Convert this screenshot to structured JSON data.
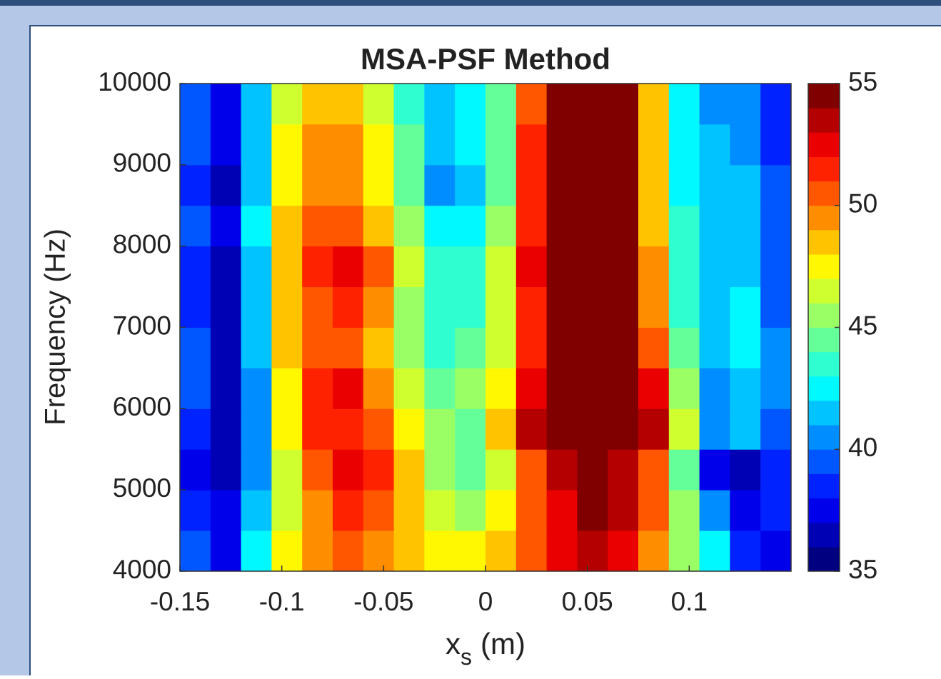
{
  "chart_data": {
    "type": "heatmap",
    "title": "MSA-PSF Method",
    "ylabel": "Frequency (Hz)",
    "xlabel": {
      "text": "x",
      "subscript": "s",
      "suffix": "(m)"
    },
    "colormap": "jet",
    "x": [
      -0.1425,
      -0.1275,
      -0.1125,
      -0.0975,
      -0.0825,
      -0.0675,
      -0.0525,
      -0.0375,
      -0.0225,
      -0.0075,
      0.0075,
      0.0225,
      0.0375,
      0.0525,
      0.0675,
      0.0825,
      0.0975,
      0.1125,
      0.1275,
      0.1425
    ],
    "y": [
      4250,
      4750,
      5250,
      5750,
      6250,
      6750,
      7250,
      7750,
      8250,
      8750,
      9250,
      9750
    ],
    "z": [
      [
        39,
        37,
        42,
        47,
        49,
        50,
        49,
        48,
        47,
        47,
        48,
        50,
        52,
        53,
        52,
        49,
        45,
        42,
        38,
        37
      ],
      [
        38,
        37,
        41,
        46,
        49,
        51,
        50,
        48,
        46,
        45,
        47,
        50,
        52,
        54,
        53,
        50,
        45,
        40,
        37,
        38
      ],
      [
        37,
        36,
        40,
        46,
        50,
        52,
        51,
        48,
        45,
        44,
        46,
        50,
        53,
        54,
        53,
        50,
        44,
        37,
        36,
        38
      ],
      [
        38,
        36,
        40,
        47,
        51,
        51,
        50,
        47,
        45,
        44,
        48,
        53,
        55,
        55,
        55,
        53,
        46,
        40,
        41,
        39
      ],
      [
        39,
        36,
        40,
        47,
        51,
        52,
        49,
        46,
        44,
        45,
        47,
        52,
        55,
        55,
        55,
        52,
        45,
        40,
        41,
        40
      ],
      [
        39,
        36,
        41,
        48,
        50,
        50,
        48,
        45,
        43,
        44,
        46,
        51,
        54,
        55,
        54,
        50,
        44,
        41,
        42,
        40
      ],
      [
        38,
        36,
        41,
        48,
        50,
        51,
        49,
        45,
        43,
        43,
        46,
        51,
        54,
        55,
        54,
        49,
        43,
        41,
        42,
        39
      ],
      [
        38,
        36,
        41,
        48,
        51,
        52,
        50,
        46,
        43,
        43,
        46,
        52,
        55,
        55,
        54,
        49,
        43,
        41,
        41,
        39
      ],
      [
        39,
        37,
        42,
        48,
        50,
        50,
        48,
        45,
        42,
        42,
        45,
        51,
        54,
        55,
        54,
        48,
        43,
        41,
        41,
        39
      ],
      [
        38,
        36,
        41,
        47,
        49,
        49,
        47,
        44,
        40,
        41,
        44,
        51,
        54,
        55,
        54,
        48,
        42,
        41,
        41,
        39
      ],
      [
        39,
        37,
        41,
        47,
        49,
        49,
        47,
        44,
        41,
        42,
        44,
        51,
        54,
        55,
        54,
        48,
        42,
        41,
        40,
        38
      ],
      [
        39,
        37,
        41,
        46,
        48,
        48,
        46,
        43,
        41,
        42,
        44,
        50,
        54,
        55,
        54,
        48,
        42,
        40,
        40,
        38
      ]
    ],
    "xlim": [
      -0.15,
      0.15
    ],
    "xticks": [
      -0.15,
      -0.1,
      -0.05,
      0,
      0.05,
      0.1
    ],
    "ylim": [
      4000,
      10000
    ],
    "yticks": [
      4000,
      5000,
      6000,
      7000,
      8000,
      9000,
      10000
    ],
    "clim": [
      35,
      55
    ],
    "cticks": [
      35,
      40,
      45,
      50,
      55
    ]
  }
}
